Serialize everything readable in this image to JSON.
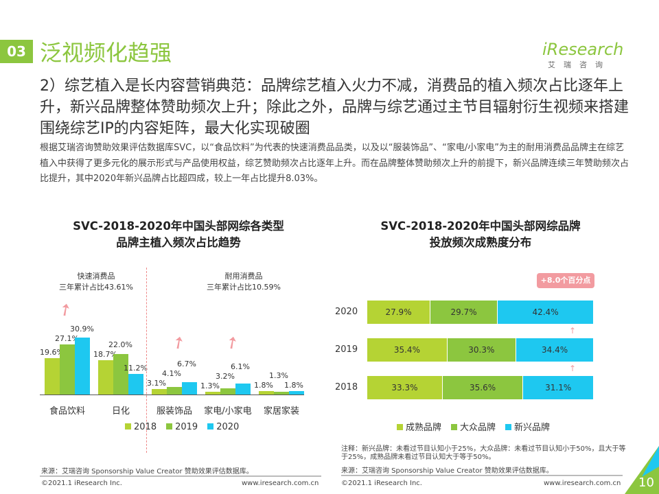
{
  "header": {
    "section_number": "03",
    "title": "泛视频化趋强",
    "logo_text": "iResearch",
    "logo_sub": "艾瑞咨询"
  },
  "headline": "2）综艺植入是长内容营销典范：品牌综艺植入火力不减，消费品的植入频次占比逐年上升，新兴品牌整体赞助频次上升；除此之外，品牌与综艺通过主节目辐射衍生视频来搭建围绕综艺IP的内容矩阵，最大化实现破圈",
  "body": "根据艾瑞咨询赞助效果评估数据库SVC，以“食品饮料”为代表的快速消费品品类，以及以“服装饰品”、“家电/小家电”为主的耐用消费品品牌主在综艺植入中获得了更多元化的展示形式与产品使用权益，综艺赞助频次占比逐年上升。而在品牌整体赞助频次上升的前提下，新兴品牌连续三年赞助频次占比提升，其中2020年新兴品牌占比超四成，较上一年占比提升8.03%。",
  "chart_data": [
    {
      "type": "bar",
      "title": "SVC-2018-2020年中国头部网综各类型\n品牌主植入频次占比趋势",
      "categories": [
        "食品饮料",
        "日化",
        "服装饰品",
        "家电/小家电",
        "家居家装"
      ],
      "series": [
        {
          "name": "2018",
          "values": [
            19.6,
            18.7,
            3.1,
            1.3,
            1.8
          ],
          "color": "#b5d334"
        },
        {
          "name": "2019",
          "values": [
            27.1,
            22.0,
            4.1,
            3.2,
            1.3
          ],
          "color": "#8cc63f"
        },
        {
          "name": "2020",
          "values": [
            30.9,
            11.2,
            6.7,
            6.1,
            1.8
          ],
          "color": "#1ec8f0"
        }
      ],
      "unit": "%",
      "annotations": [
        {
          "title": "快速消费品",
          "text": "三年累计占比43.61%"
        },
        {
          "title": "耐用消费品",
          "text": "三年累计占比10.59%"
        }
      ],
      "legend": "bottom"
    },
    {
      "type": "bar",
      "stacked": true,
      "orientation": "horizontal",
      "title": "SVC-2018-2020年中国头部网综品牌\n投放频次成熟度分布",
      "categories": [
        "2020",
        "2019",
        "2018"
      ],
      "series": [
        {
          "name": "成熟品牌",
          "values": [
            27.9,
            35.4,
            33.3
          ],
          "color": "#b5d334"
        },
        {
          "name": "大众品牌",
          "values": [
            29.7,
            30.3,
            35.6
          ],
          "color": "#8cc63f"
        },
        {
          "name": "新兴品牌",
          "values": [
            42.4,
            34.4,
            31.1
          ],
          "color": "#1ec8f0"
        }
      ],
      "unit": "%",
      "callout": "+8.0个百分点",
      "legend": "bottom"
    }
  ],
  "left_chart": {
    "title_1": "SVC-2018-2020年中国头部网综各类型",
    "title_2": "品牌主植入频次占比趋势",
    "source": "来源：艾瑞咨询 Sponsorship Value Creator 赞助效果评估数据库。"
  },
  "right_chart": {
    "title_1": "SVC-2018-2020年中国头部网综品牌",
    "title_2": "投放频次成熟度分布",
    "note": "注释：新兴品牌：未看过节目认知小于25%，大众品牌：未看过节目认知小于50%，且大于等于25%，成熟品牌未看过节目认知大于等于50%。",
    "source": "来源：艾瑞咨询 Sponsorship Value Creator 赞助效果评估数据库。"
  },
  "footer": {
    "copyright": "©2021.1 iResearch Inc.",
    "url": "www.iresearch.com.cn",
    "page": "10"
  }
}
